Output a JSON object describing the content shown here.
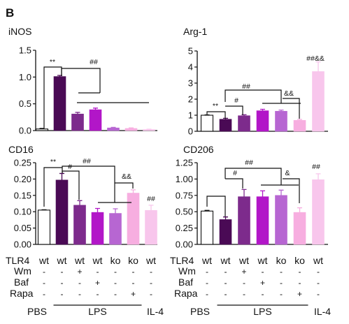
{
  "panel_label": "B",
  "colors": [
    "#ffffff",
    "#4a0a55",
    "#7d2b8c",
    "#b216c8",
    "#b766d2",
    "#f7aee0",
    "#f8c6ec"
  ],
  "chart_data": [
    {
      "type": "bar",
      "title": "iNOS",
      "categories": [
        "PBS",
        "LPS wt",
        "LPS Wm",
        "LPS Baf",
        "LPS ko",
        "LPS ko Rapa",
        "IL-4"
      ],
      "values": [
        0.03,
        1.01,
        0.31,
        0.39,
        0.05,
        0.04,
        0.02
      ],
      "errors": [
        0.01,
        0.02,
        0.03,
        0.03,
        0.01,
        0.01,
        0.005
      ],
      "ylim": [
        0,
        1.5
      ],
      "yticks": [
        "0.0",
        "0.5",
        "1.0",
        "1.5"
      ],
      "annotations": [
        "**",
        "##"
      ]
    },
    {
      "type": "bar",
      "title": "Arg-1",
      "categories": [
        "PBS",
        "LPS wt",
        "LPS Wm",
        "LPS Baf",
        "LPS ko",
        "LPS ko Rapa",
        "IL-4"
      ],
      "values": [
        1.0,
        0.75,
        0.97,
        1.28,
        1.25,
        0.68,
        3.72
      ],
      "errors": [
        0.02,
        0.06,
        0.06,
        0.09,
        0.07,
        0.06,
        0.6
      ],
      "ylim": [
        0,
        5
      ],
      "yticks": [
        "0",
        "1",
        "2",
        "3",
        "4",
        "5"
      ],
      "annotations": [
        "**",
        "#",
        "##",
        "&&",
        "##&&"
      ]
    },
    {
      "type": "bar",
      "title": "CD16",
      "categories": [
        "PBS",
        "LPS wt",
        "LPS Wm",
        "LPS Baf",
        "LPS ko",
        "LPS ko Rapa",
        "IL-4"
      ],
      "values": [
        0.105,
        0.197,
        0.12,
        0.098,
        0.095,
        0.157,
        0.104
      ],
      "errors": [
        0.001,
        0.02,
        0.014,
        0.012,
        0.014,
        0.01,
        0.016
      ],
      "ylim": [
        0,
        0.25
      ],
      "yticks": [
        "0.00",
        "0.05",
        "0.10",
        "0.15",
        "0.20",
        "0.25"
      ],
      "annotations": [
        "**",
        "#",
        "##",
        "&&",
        "##"
      ]
    },
    {
      "type": "bar",
      "title": "CD206",
      "categories": [
        "PBS",
        "LPS wt",
        "LPS Wm",
        "LPS Baf",
        "LPS ko",
        "LPS ko Rapa",
        "IL-4"
      ],
      "values": [
        0.51,
        0.38,
        0.73,
        0.73,
        0.75,
        0.49,
        0.99
      ],
      "errors": [
        0.01,
        0.04,
        0.11,
        0.09,
        0.08,
        0.07,
        0.09
      ],
      "ylim": [
        0,
        1.25
      ],
      "yticks": [
        "0.00",
        "0.25",
        "0.50",
        "0.75",
        "1.00",
        "1.25"
      ],
      "annotations": [
        "#",
        "##",
        "&",
        "##"
      ]
    }
  ],
  "conditions": [
    {
      "label": "TLR4",
      "values": [
        "wt",
        "wt",
        "wt",
        "wt",
        "ko",
        "ko",
        "wt"
      ]
    },
    {
      "label": "Wm",
      "values": [
        "-",
        "-",
        "+",
        "-",
        "-",
        "-",
        "-"
      ]
    },
    {
      "label": "Baf",
      "values": [
        "-",
        "-",
        "-",
        "+",
        "-",
        "-",
        "-"
      ]
    },
    {
      "label": "Rapa",
      "values": [
        "-",
        "-",
        "-",
        "-",
        "-",
        "+",
        "-"
      ]
    }
  ],
  "groups": [
    "PBS",
    "LPS",
    "IL-4"
  ]
}
